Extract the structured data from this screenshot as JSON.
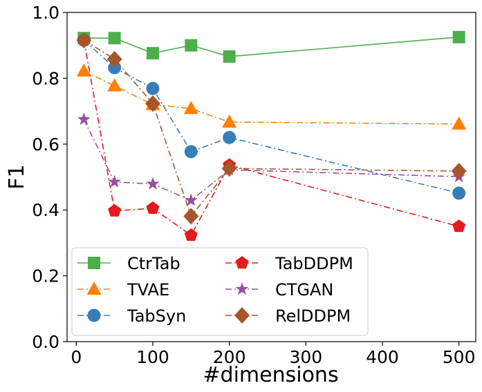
{
  "chart_data": {
    "type": "line",
    "xlabel": "#dimensions",
    "ylabel": "F1",
    "xlim": [
      -12,
      522
    ],
    "ylim": [
      0.0,
      1.0
    ],
    "xticks": [
      0,
      100,
      200,
      300,
      400,
      500
    ],
    "yticks": [
      0.0,
      0.2,
      0.4,
      0.6,
      0.8,
      1.0
    ],
    "xtick_labels": [
      "0",
      "100",
      "200",
      "300",
      "400",
      "500"
    ],
    "ytick_labels": [
      "0.0",
      "0.2",
      "0.4",
      "0.6",
      "0.8",
      "1.0"
    ],
    "legend_position": "bottom-left",
    "grid": false,
    "x": [
      10,
      50,
      100,
      150,
      200,
      500
    ],
    "series": [
      {
        "name": "CtrTab",
        "color": "#4daf4a",
        "marker": "square",
        "dash": "solid",
        "values": [
          0.922,
          0.922,
          0.876,
          0.9,
          0.866,
          0.925
        ]
      },
      {
        "name": "TVAE",
        "color": "#ff7f00",
        "marker": "triangle",
        "dash": "dashdot",
        "values": [
          0.822,
          0.777,
          0.72,
          0.708,
          0.667,
          0.661
        ]
      },
      {
        "name": "TabSyn",
        "color": "#377eb8",
        "marker": "circle",
        "dash": "dashdot",
        "values": [
          0.916,
          0.832,
          0.769,
          0.577,
          0.62,
          0.451
        ]
      },
      {
        "name": "TabDDPM",
        "color": "#e41a1c",
        "marker": "pentagon",
        "dash": "dashdot",
        "values": [
          0.916,
          0.397,
          0.405,
          0.323,
          0.536,
          0.35
        ]
      },
      {
        "name": "CTGAN",
        "color": "#984ea3",
        "marker": "star",
        "dash": "dashdot",
        "values": [
          0.675,
          0.485,
          0.479,
          0.429,
          0.522,
          0.501
        ]
      },
      {
        "name": "RelDDPM",
        "color": "#a65628",
        "marker": "diamond",
        "dash": "dashdot",
        "values": [
          0.916,
          0.858,
          0.723,
          0.381,
          0.526,
          0.518
        ]
      }
    ]
  }
}
